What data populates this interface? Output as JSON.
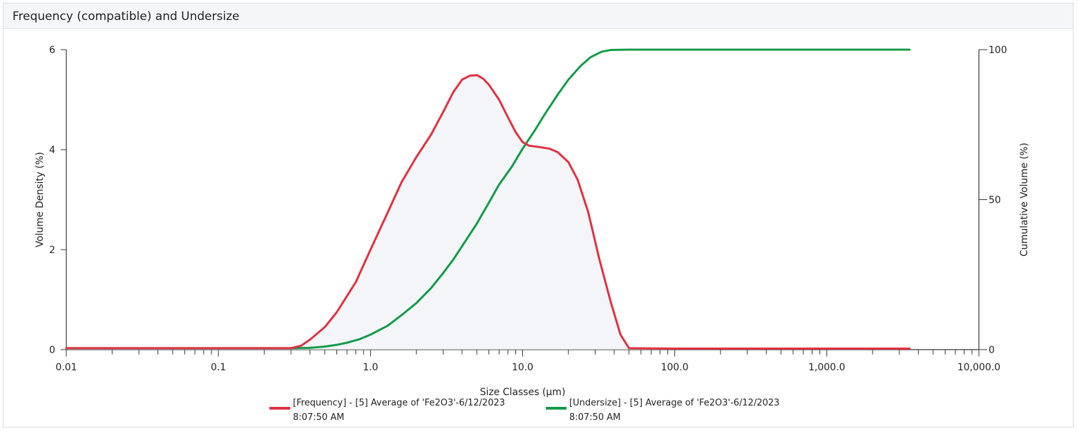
{
  "header": {
    "title": "Frequency (compatible) and Undersize"
  },
  "chart_data": {
    "type": "line",
    "title": "Frequency (compatible) and Undersize",
    "xlabel": "Size Classes (µm)",
    "ylabel": "Volume Density (%)",
    "y2label": "Cumulative Volume (%)",
    "x_scale": "log",
    "xlim": [
      0.01,
      10000
    ],
    "ylim": [
      0,
      6
    ],
    "y2lim": [
      0,
      100
    ],
    "x_ticks": [
      0.01,
      0.1,
      1,
      10,
      100,
      1000,
      10000
    ],
    "x_tick_labels": [
      "0.01",
      "0.1",
      "1.0",
      "10.0",
      "100.0",
      "1,000.0",
      "10,000.0"
    ],
    "y_ticks": [
      0,
      2,
      4,
      6
    ],
    "y_tick_labels": [
      "0",
      "2",
      "4",
      "6"
    ],
    "y2_ticks": [
      0,
      50,
      100
    ],
    "y2_tick_labels": [
      "0",
      "50",
      "100"
    ],
    "grid": false,
    "legend_position": "bottom",
    "series": [
      {
        "name": "[Frequency] - [5] Average of 'Fe2O3'-6/12/2023 8:07:50 AM",
        "legend_lines": [
          "[Frequency] - [5] Average of 'Fe2O3'-6/12/2023",
          "8:07:50 AM"
        ],
        "axis": "left",
        "color": "#e03040",
        "points": [
          [
            0.01,
            0.03
          ],
          [
            0.1,
            0.03
          ],
          [
            0.3,
            0.03
          ],
          [
            0.35,
            0.08
          ],
          [
            0.4,
            0.2
          ],
          [
            0.5,
            0.45
          ],
          [
            0.6,
            0.75
          ],
          [
            0.8,
            1.35
          ],
          [
            1.0,
            2.0
          ],
          [
            1.3,
            2.75
          ],
          [
            1.6,
            3.35
          ],
          [
            2.0,
            3.85
          ],
          [
            2.5,
            4.3
          ],
          [
            3.0,
            4.75
          ],
          [
            3.5,
            5.15
          ],
          [
            4.0,
            5.4
          ],
          [
            4.5,
            5.48
          ],
          [
            5.0,
            5.49
          ],
          [
            5.5,
            5.42
          ],
          [
            6.0,
            5.3
          ],
          [
            7.0,
            5.0
          ],
          [
            8.0,
            4.65
          ],
          [
            9.0,
            4.35
          ],
          [
            10.0,
            4.15
          ],
          [
            11.0,
            4.08
          ],
          [
            13.0,
            4.05
          ],
          [
            15.0,
            4.02
          ],
          [
            17.0,
            3.95
          ],
          [
            20.0,
            3.75
          ],
          [
            23.0,
            3.4
          ],
          [
            27.0,
            2.75
          ],
          [
            32.0,
            1.8
          ],
          [
            38.0,
            0.95
          ],
          [
            44.0,
            0.3
          ],
          [
            50.0,
            0.03
          ],
          [
            100.0,
            0.02
          ],
          [
            1000.0,
            0.02
          ],
          [
            3500.0,
            0.02
          ]
        ]
      },
      {
        "name": "[Undersize] - [5] Average of 'Fe2O3'-6/12/2023 8:07:50 AM",
        "legend_lines": [
          "[Undersize] - [5] Average of 'Fe2O3'-6/12/2023",
          "8:07:50 AM"
        ],
        "axis": "right",
        "color": "#119a48",
        "points": [
          [
            0.01,
            0.5
          ],
          [
            0.1,
            0.5
          ],
          [
            0.3,
            0.5
          ],
          [
            0.4,
            0.6
          ],
          [
            0.5,
            1.0
          ],
          [
            0.6,
            1.6
          ],
          [
            0.7,
            2.3
          ],
          [
            0.85,
            3.5
          ],
          [
            1.0,
            5.0
          ],
          [
            1.3,
            8.0
          ],
          [
            1.6,
            11.5
          ],
          [
            2.0,
            15.5
          ],
          [
            2.5,
            20.5
          ],
          [
            3.0,
            25.5
          ],
          [
            3.5,
            30.0
          ],
          [
            4.0,
            34.5
          ],
          [
            5.0,
            42.0
          ],
          [
            6.0,
            49.0
          ],
          [
            7.0,
            55.0
          ],
          [
            8.5,
            61.0
          ],
          [
            10.0,
            67.0
          ],
          [
            12.0,
            73.0
          ],
          [
            14.0,
            78.5
          ],
          [
            17.0,
            85.0
          ],
          [
            20.0,
            90.0
          ],
          [
            24.0,
            94.5
          ],
          [
            28.0,
            97.5
          ],
          [
            33.0,
            99.3
          ],
          [
            38.0,
            99.9
          ],
          [
            50.0,
            100.0
          ],
          [
            100.0,
            100.0
          ],
          [
            1000.0,
            100.0
          ],
          [
            3500.0,
            100.0
          ]
        ]
      }
    ]
  }
}
